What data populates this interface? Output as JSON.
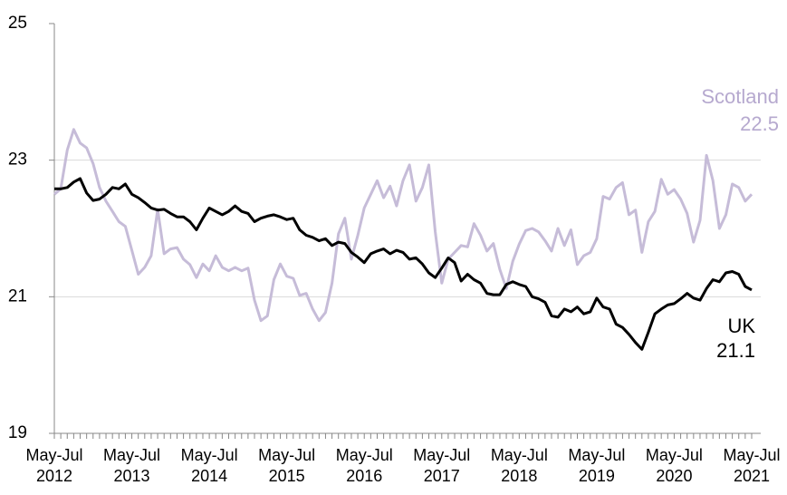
{
  "chart_data": {
    "type": "line",
    "categories": [
      "May-Jul 2012",
      null,
      null,
      null,
      null,
      null,
      null,
      null,
      null,
      null,
      null,
      null,
      "May-Jul 2013",
      null,
      null,
      null,
      null,
      null,
      null,
      null,
      null,
      null,
      null,
      null,
      "May-Jul 2014",
      null,
      null,
      null,
      null,
      null,
      null,
      null,
      null,
      null,
      null,
      null,
      "May-Jul 2015",
      null,
      null,
      null,
      null,
      null,
      null,
      null,
      null,
      null,
      null,
      null,
      "May-Jul 2016",
      null,
      null,
      null,
      null,
      null,
      null,
      null,
      null,
      null,
      null,
      null,
      "May-Jul 2017",
      null,
      null,
      null,
      null,
      null,
      null,
      null,
      null,
      null,
      null,
      null,
      "May-Jul 2018",
      null,
      null,
      null,
      null,
      null,
      null,
      null,
      null,
      null,
      null,
      null,
      "May-Jul 2019",
      null,
      null,
      null,
      null,
      null,
      null,
      null,
      null,
      null,
      null,
      null,
      "May-Jul 2020",
      null,
      null,
      null,
      null,
      null,
      null,
      null,
      null,
      null,
      null,
      null,
      "May-Jul 2021"
    ],
    "series": [
      {
        "name": "Scotland",
        "color": "#c6bcd8",
        "label_color": "#b6a9cf",
        "values": [
          22.5,
          22.58,
          23.15,
          23.45,
          23.25,
          23.18,
          22.95,
          22.6,
          22.4,
          22.25,
          22.1,
          22.03,
          21.68,
          21.33,
          21.43,
          21.6,
          22.28,
          21.63,
          21.7,
          21.72,
          21.55,
          21.47,
          21.28,
          21.48,
          21.38,
          21.6,
          21.43,
          21.38,
          21.43,
          21.38,
          21.42,
          20.95,
          20.65,
          20.72,
          21.25,
          21.48,
          21.3,
          21.27,
          21.02,
          21.05,
          20.82,
          20.65,
          20.77,
          21.2,
          21.92,
          22.15,
          21.55,
          21.9,
          22.3,
          22.5,
          22.7,
          22.45,
          22.62,
          22.33,
          22.7,
          22.93,
          22.4,
          22.6,
          22.93,
          21.95,
          21.2,
          21.55,
          21.65,
          21.75,
          21.73,
          22.07,
          21.9,
          21.67,
          21.78,
          21.4,
          21.12,
          21.52,
          21.77,
          21.97,
          22.0,
          21.95,
          21.82,
          21.67,
          22.0,
          21.75,
          21.98,
          21.47,
          21.6,
          21.65,
          21.85,
          22.47,
          22.43,
          22.6,
          22.67,
          22.2,
          22.27,
          21.65,
          22.1,
          22.25,
          22.72,
          22.5,
          22.57,
          22.43,
          22.22,
          21.8,
          22.12,
          23.07,
          22.7,
          22.0,
          22.2,
          22.65,
          22.6,
          22.4,
          22.5
        ],
        "end_label": "22.5"
      },
      {
        "name": "UK",
        "color": "#000000",
        "label_color": "#000000",
        "values": [
          22.58,
          22.58,
          22.6,
          22.68,
          22.73,
          22.52,
          22.41,
          22.43,
          22.5,
          22.6,
          22.58,
          22.65,
          22.5,
          22.45,
          22.38,
          22.3,
          22.27,
          22.28,
          22.22,
          22.17,
          22.17,
          22.1,
          21.98,
          22.15,
          22.3,
          22.25,
          22.2,
          22.25,
          22.33,
          22.25,
          22.22,
          22.1,
          22.15,
          22.18,
          22.2,
          22.17,
          22.13,
          22.15,
          21.98,
          21.9,
          21.87,
          21.82,
          21.85,
          21.75,
          21.8,
          21.78,
          21.65,
          21.58,
          21.5,
          21.63,
          21.67,
          21.7,
          21.63,
          21.68,
          21.65,
          21.55,
          21.57,
          21.48,
          21.35,
          21.28,
          21.42,
          21.57,
          21.5,
          21.23,
          21.33,
          21.25,
          21.2,
          21.05,
          21.03,
          21.03,
          21.18,
          21.22,
          21.18,
          21.15,
          21.0,
          20.97,
          20.92,
          20.72,
          20.7,
          20.82,
          20.78,
          20.85,
          20.75,
          20.78,
          20.98,
          20.85,
          20.82,
          20.6,
          20.55,
          20.45,
          20.33,
          20.23,
          20.48,
          20.75,
          20.82,
          20.88,
          20.9,
          20.97,
          21.05,
          20.98,
          20.95,
          21.12,
          21.25,
          21.22,
          21.35,
          21.37,
          21.33,
          21.15,
          21.1
        ],
        "end_label": "21.1"
      }
    ],
    "ylim": [
      19,
      25
    ],
    "yticks": [
      19,
      21,
      23,
      25
    ],
    "grid": true
  }
}
